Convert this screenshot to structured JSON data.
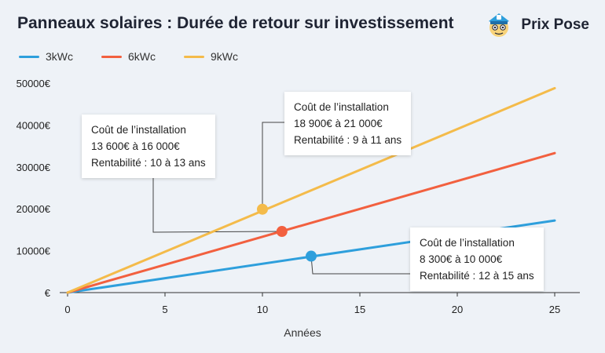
{
  "title": "Panneaux solaires : Durée de retour sur investissement",
  "brand": {
    "name": "Prix Pose",
    "icon": "mascot-icon"
  },
  "colors": {
    "3kWc": "#2e9fdc",
    "6kWc": "#f2603f",
    "9kWc": "#f4bb4a",
    "background": "#eef2f7"
  },
  "annotations": [
    {
      "series": "6kWc",
      "lines": [
        "Coût de l’installation",
        "13 600€ à 16 000€",
        "Rentabilité : 10 à 13 ans"
      ]
    },
    {
      "series": "9kWc",
      "lines": [
        "Coût de l’installation",
        "18 900€ à 21 000€",
        "Rentabilité : 9 à 11 ans"
      ]
    },
    {
      "series": "3kWc",
      "lines": [
        "Coût de l’installation",
        "8 300€ à 10 000€",
        "Rentabilité : 12 à 15 ans"
      ]
    }
  ],
  "chart_data": {
    "type": "line",
    "xlabel": "Années",
    "ylabel": "",
    "xlim": [
      0,
      26
    ],
    "ylim": [
      0,
      50000
    ],
    "x_ticks": [
      0,
      5,
      10,
      15,
      20,
      25
    ],
    "y_ticks": [
      0,
      10000,
      20000,
      30000,
      40000,
      50000
    ],
    "y_tick_labels": [
      "€",
      "10000€",
      "20000€",
      "30000€",
      "40000€",
      "50000€"
    ],
    "legend": "top-left",
    "grid": false,
    "series": [
      {
        "name": "3kWc",
        "color": "#2e9fdc",
        "x": [
          0,
          25
        ],
        "y": [
          0,
          17200
        ],
        "marker": {
          "x": 12.5,
          "y": 8700
        }
      },
      {
        "name": "6kWc",
        "color": "#f2603f",
        "x": [
          0,
          25
        ],
        "y": [
          0,
          33300
        ],
        "marker": {
          "x": 11,
          "y": 14600
        }
      },
      {
        "name": "9kWc",
        "color": "#f4bb4a",
        "x": [
          0,
          25
        ],
        "y": [
          0,
          48800
        ],
        "marker": {
          "x": 10,
          "y": 19900
        }
      }
    ]
  }
}
